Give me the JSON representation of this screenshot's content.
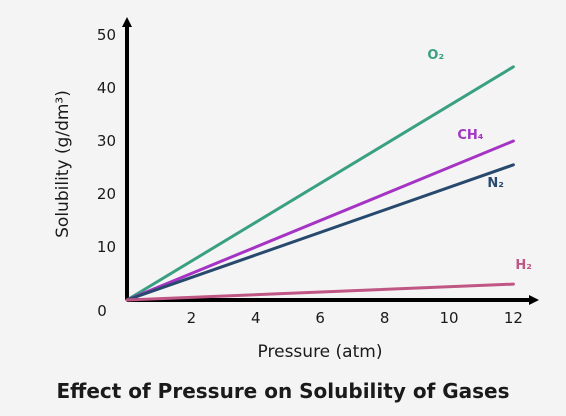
{
  "chart_data": {
    "type": "line",
    "title": "Effect of Pressure on Solubility of Gases",
    "xlabel": "Pressure (atm)",
    "ylabel": "Solubility (g/dm³)",
    "xlim": [
      0,
      12
    ],
    "ylim": [
      0,
      50
    ],
    "xticks": [
      2,
      4,
      6,
      8,
      10,
      12
    ],
    "yticks": [
      10,
      20,
      30,
      40,
      50
    ],
    "origin_label": "0",
    "grid": false,
    "series": [
      {
        "name": "O₂",
        "color": "#3aa082",
        "x": [
          0,
          12
        ],
        "y": [
          0,
          44
        ]
      },
      {
        "name": "CH₄",
        "color": "#a533c4",
        "x": [
          0,
          12
        ],
        "y": [
          0,
          30
        ]
      },
      {
        "name": "N₂",
        "color": "#27496d",
        "x": [
          0,
          12
        ],
        "y": [
          0,
          25.5
        ]
      },
      {
        "name": "H₂",
        "color": "#c05684",
        "x": [
          0,
          12
        ],
        "y": [
          0,
          3
        ]
      }
    ]
  }
}
